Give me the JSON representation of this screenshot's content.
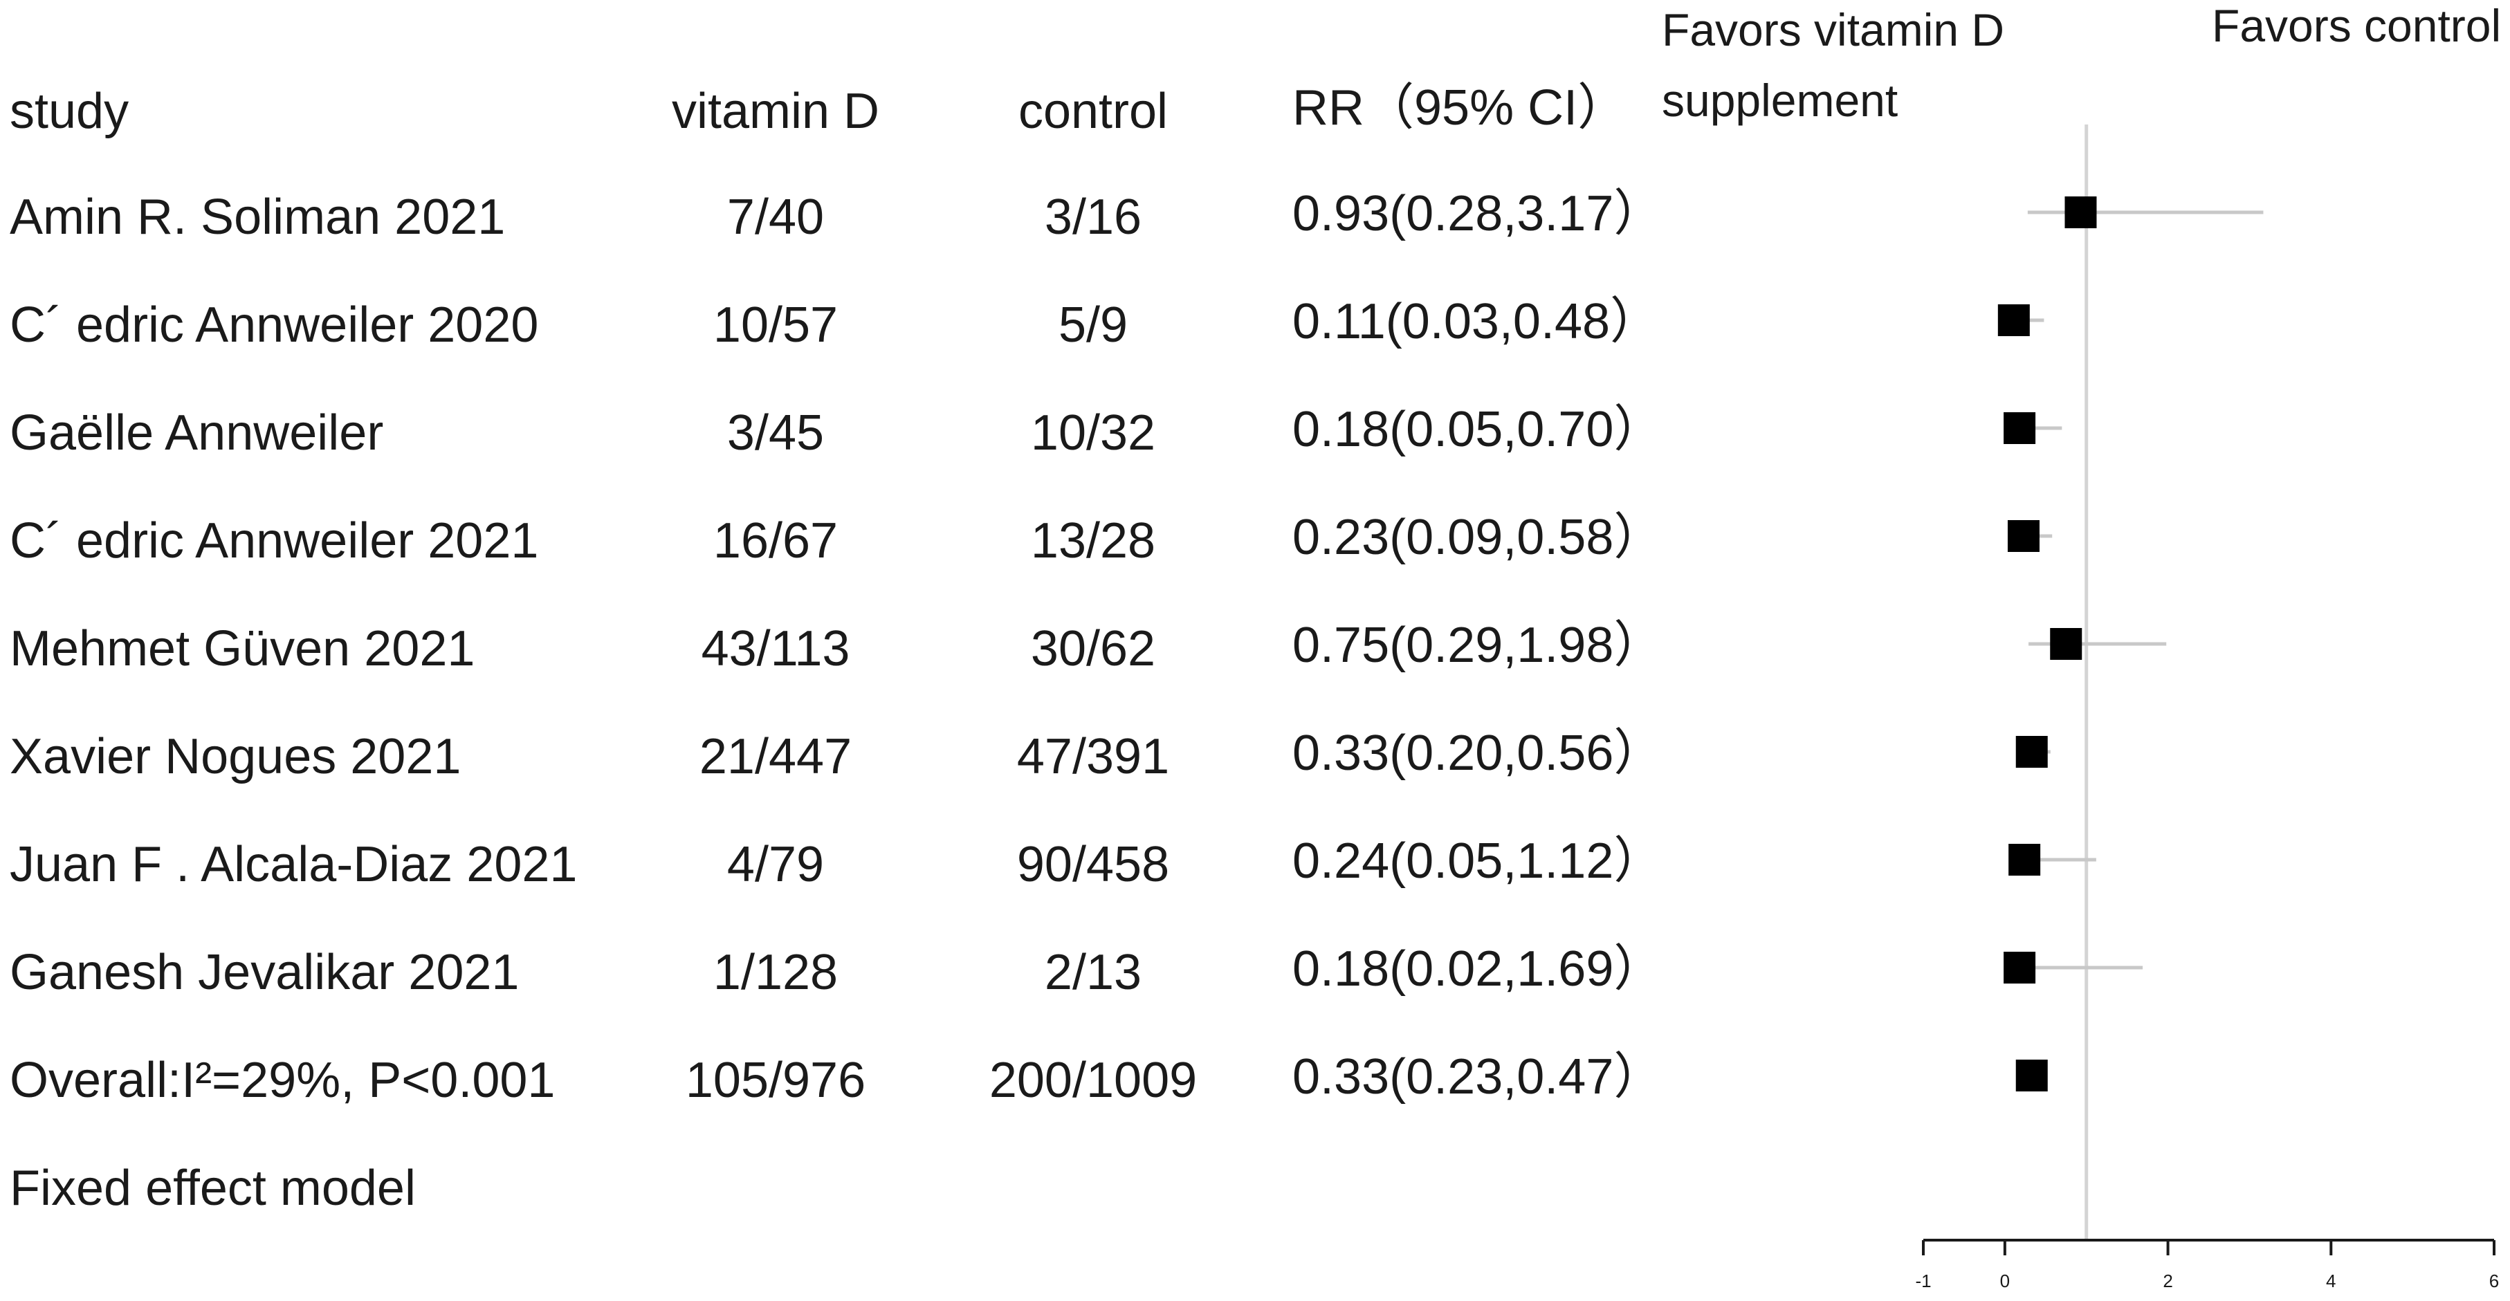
{
  "header": {
    "study": "study",
    "vitamin_d": "vitamin D",
    "control": "control",
    "rr": "RR（95% CI）",
    "favors_vitamin_d_line1": "Favors vitamin D",
    "favors_vitamin_d_line2": "supplement",
    "favors_control": "Favors control"
  },
  "rows": [
    {
      "study": "Amin R. Soliman 2021",
      "vitamin_d": "7/40",
      "control": "3/16",
      "rr_text": "0.93(0.28,3.17）"
    },
    {
      "study": "C´ edric Annweiler 2020",
      "vitamin_d": "10/57",
      "control": "5/9",
      "rr_text": "0.11(0.03,0.48）"
    },
    {
      "study": "Gaëlle Annweiler",
      "vitamin_d": "3/45",
      "control": "10/32",
      "rr_text": "0.18(0.05,0.70）"
    },
    {
      "study": "C´ edric Annweiler 2021",
      "vitamin_d": "16/67",
      "control": "13/28",
      "rr_text": "0.23(0.09,0.58）"
    },
    {
      "study": "Mehmet Güven 2021",
      "vitamin_d": "43/113",
      "control": "30/62",
      "rr_text": "0.75(0.29,1.98）"
    },
    {
      "study": "Xavier Nogues 2021",
      "vitamin_d": "21/447",
      "control": "47/391",
      "rr_text": "0.33(0.20,0.56）"
    },
    {
      "study": "Juan F . Alcala-Diaz 2021",
      "vitamin_d": "4/79",
      "control": "90/458",
      "rr_text": "0.24(0.05,1.12）"
    },
    {
      "study": "Ganesh Jevalikar 2021",
      "vitamin_d": "1/128",
      "control": "2/13",
      "rr_text": "0.18(0.02,1.69）"
    },
    {
      "study": "Overall:I²=29%, P<0.001",
      "vitamin_d": "105/976",
      "control": "200/1009",
      "rr_text": "0.33(0.23,0.47）"
    }
  ],
  "footer": {
    "model": "Fixed effect model"
  },
  "chart_data": {
    "type": "scatter",
    "subtype": "forest-plot",
    "title": "",
    "xlabel": "",
    "ylabel": "",
    "xlim": [
      -1,
      6
    ],
    "xticks": [
      -1,
      0,
      2,
      4,
      6
    ],
    "reference_line": 1,
    "grid": false,
    "series": [
      {
        "points": [
          {
            "label": "Amin R. Soliman 2021",
            "est": 0.93,
            "lo": 0.28,
            "hi": 3.17
          },
          {
            "label": "C´ edric Annweiler 2020",
            "est": 0.11,
            "lo": 0.03,
            "hi": 0.48
          },
          {
            "label": "Gaëlle Annweiler",
            "est": 0.18,
            "lo": 0.05,
            "hi": 0.7
          },
          {
            "label": "C´ edric Annweiler 2021",
            "est": 0.23,
            "lo": 0.09,
            "hi": 0.58
          },
          {
            "label": "Mehmet Güven 2021",
            "est": 0.75,
            "lo": 0.29,
            "hi": 1.98
          },
          {
            "label": "Xavier Nogues 2021",
            "est": 0.33,
            "lo": 0.2,
            "hi": 0.56
          },
          {
            "label": "Juan F . Alcala-Diaz 2021",
            "est": 0.24,
            "lo": 0.05,
            "hi": 1.12
          },
          {
            "label": "Ganesh Jevalikar 2021",
            "est": 0.18,
            "lo": 0.02,
            "hi": 1.69
          },
          {
            "label": "Overall:I²=29%, P<0.001",
            "est": 0.33,
            "lo": 0.23,
            "hi": 0.47
          }
        ]
      }
    ]
  }
}
